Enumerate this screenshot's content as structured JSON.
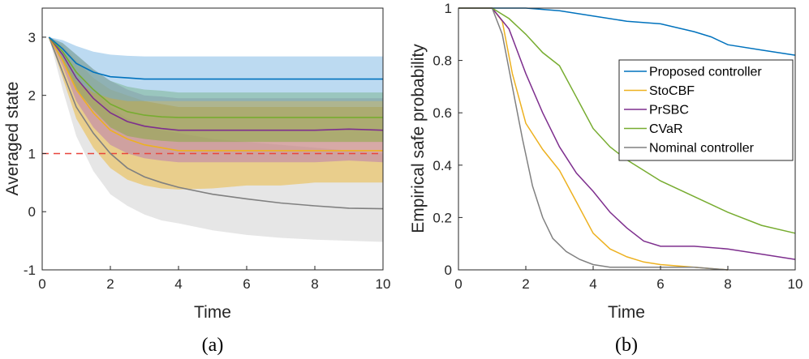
{
  "chart_data": [
    {
      "type": "line",
      "panel": "left",
      "caption": "(a)",
      "xlabel": "Time",
      "ylabel": "Averaged state",
      "xlim": [
        0,
        10
      ],
      "ylim": [
        -1,
        3.5
      ],
      "xticks": [
        "0",
        "2",
        "4",
        "6",
        "8",
        "10"
      ],
      "yticks": [
        "-1",
        "0",
        "1",
        "2",
        "3"
      ],
      "reference_line": {
        "y": 1,
        "color": "#e8453c",
        "style": "dashed"
      },
      "series": [
        {
          "name": "Nominal controller",
          "color": "#808080",
          "band_color": "#c8c8c8",
          "x": [
            0.2,
            0.6,
            1.0,
            1.5,
            2.0,
            2.5,
            3.0,
            3.5,
            4.0,
            5.0,
            6.0,
            7.0,
            8.0,
            9.0,
            10.0
          ],
          "mean": [
            3.0,
            2.4,
            1.8,
            1.35,
            1.0,
            0.75,
            0.6,
            0.5,
            0.42,
            0.3,
            0.22,
            0.15,
            0.1,
            0.06,
            0.05
          ],
          "upper": [
            3.0,
            2.75,
            2.4,
            2.1,
            1.8,
            1.6,
            1.5,
            1.4,
            1.35,
            1.25,
            1.2,
            1.15,
            1.1,
            1.05,
            1.0
          ],
          "lower": [
            3.0,
            2.1,
            1.3,
            0.7,
            0.3,
            0.1,
            -0.05,
            -0.15,
            -0.2,
            -0.32,
            -0.4,
            -0.45,
            -0.48,
            -0.5,
            -0.52
          ]
        },
        {
          "name": "StoCBF",
          "color": "#edb120",
          "band_color": "#edb120",
          "x": [
            0.2,
            0.6,
            1.0,
            1.5,
            2.0,
            2.5,
            3.0,
            3.5,
            4.0,
            5.0,
            6.0,
            7.0,
            8.0,
            9.0,
            10.0
          ],
          "mean": [
            3.0,
            2.6,
            2.1,
            1.7,
            1.4,
            1.25,
            1.15,
            1.1,
            1.05,
            1.05,
            1.05,
            1.05,
            1.05,
            1.05,
            1.05
          ],
          "upper": [
            3.0,
            2.85,
            2.6,
            2.3,
            2.1,
            2.0,
            1.9,
            1.85,
            1.8,
            1.8,
            1.8,
            1.8,
            1.8,
            1.8,
            1.8
          ],
          "lower": [
            3.0,
            2.3,
            1.6,
            1.1,
            0.75,
            0.55,
            0.45,
            0.4,
            0.38,
            0.4,
            0.45,
            0.45,
            0.5,
            0.5,
            0.5
          ]
        },
        {
          "name": "PrSBC",
          "color": "#7e2f8e",
          "band_color": "#b06ab8",
          "x": [
            0.2,
            0.6,
            1.0,
            1.5,
            2.0,
            2.5,
            3.0,
            3.5,
            4.0,
            5.0,
            6.0,
            7.0,
            8.0,
            9.0,
            10.0
          ],
          "mean": [
            3.0,
            2.7,
            2.3,
            1.95,
            1.7,
            1.55,
            1.47,
            1.43,
            1.4,
            1.4,
            1.4,
            1.4,
            1.4,
            1.42,
            1.4
          ],
          "upper": [
            3.0,
            2.9,
            2.7,
            2.45,
            2.25,
            2.1,
            2.0,
            1.98,
            1.95,
            1.95,
            1.95,
            1.95,
            1.95,
            1.95,
            1.95
          ],
          "lower": [
            3.0,
            2.5,
            1.9,
            1.45,
            1.15,
            1.0,
            0.92,
            0.88,
            0.85,
            0.85,
            0.85,
            0.85,
            0.85,
            0.88,
            0.85
          ]
        },
        {
          "name": "CVaR",
          "color": "#77ac30",
          "band_color": "#77ac30",
          "x": [
            0.2,
            0.6,
            1.0,
            1.5,
            2.0,
            2.5,
            3.0,
            3.5,
            4.0,
            5.0,
            6.0,
            7.0,
            8.0,
            9.0,
            10.0
          ],
          "mean": [
            3.0,
            2.75,
            2.4,
            2.1,
            1.85,
            1.72,
            1.66,
            1.63,
            1.62,
            1.62,
            1.62,
            1.62,
            1.62,
            1.62,
            1.62
          ],
          "upper": [
            3.0,
            2.9,
            2.7,
            2.45,
            2.25,
            2.15,
            2.1,
            2.08,
            2.05,
            2.05,
            2.05,
            2.05,
            2.05,
            2.05,
            2.05
          ],
          "lower": [
            3.0,
            2.6,
            2.1,
            1.75,
            1.45,
            1.3,
            1.25,
            1.22,
            1.2,
            1.2,
            1.2,
            1.2,
            1.2,
            1.2,
            1.2
          ]
        },
        {
          "name": "Proposed controller",
          "color": "#0072bd",
          "band_color": "#6aaddf",
          "x": [
            0.2,
            0.6,
            1.0,
            1.5,
            2.0,
            2.5,
            3.0,
            3.5,
            4.0,
            5.0,
            6.0,
            7.0,
            8.0,
            9.0,
            10.0
          ],
          "mean": [
            3.0,
            2.8,
            2.55,
            2.4,
            2.32,
            2.3,
            2.28,
            2.28,
            2.28,
            2.28,
            2.28,
            2.28,
            2.28,
            2.28,
            2.28
          ],
          "upper": [
            3.0,
            2.95,
            2.85,
            2.75,
            2.7,
            2.68,
            2.67,
            2.67,
            2.67,
            2.67,
            2.67,
            2.67,
            2.67,
            2.67,
            2.67
          ],
          "lower": [
            3.0,
            2.65,
            2.25,
            2.05,
            1.95,
            1.9,
            1.9,
            1.9,
            1.9,
            1.9,
            1.9,
            1.9,
            1.9,
            1.9,
            1.9
          ]
        }
      ]
    },
    {
      "type": "line",
      "panel": "right",
      "caption": "(b)",
      "xlabel": "Time",
      "ylabel": "Empirical safe probability",
      "xlim": [
        0,
        10
      ],
      "ylim": [
        0,
        1
      ],
      "xticks": [
        "0",
        "2",
        "4",
        "6",
        "8",
        "10"
      ],
      "yticks": [
        "0",
        "0.2",
        "0.4",
        "0.6",
        "0.8",
        "1"
      ],
      "legend_position": "top-right",
      "series": [
        {
          "name": "Proposed controller",
          "color": "#0072bd",
          "x": [
            0,
            2.0,
            3.0,
            4.0,
            5.0,
            6.0,
            7.0,
            7.5,
            8.0,
            9.0,
            10.0
          ],
          "y": [
            1.0,
            1.0,
            0.99,
            0.97,
            0.95,
            0.94,
            0.91,
            0.89,
            0.86,
            0.84,
            0.82
          ]
        },
        {
          "name": "StoCBF",
          "color": "#edb120",
          "x": [
            0,
            1.0,
            1.3,
            1.6,
            2.0,
            2.5,
            3.0,
            3.5,
            4.0,
            4.5,
            5.0,
            5.5,
            6.0,
            7.0,
            8.0
          ],
          "y": [
            1.0,
            1.0,
            0.95,
            0.75,
            0.56,
            0.46,
            0.38,
            0.26,
            0.14,
            0.08,
            0.05,
            0.03,
            0.02,
            0.01,
            0.0
          ]
        },
        {
          "name": "PrSBC",
          "color": "#7e2f8e",
          "x": [
            0,
            1.0,
            1.5,
            2.0,
            2.5,
            3.0,
            3.5,
            4.0,
            4.5,
            5.0,
            5.5,
            6.0,
            7.0,
            8.0,
            9.0,
            10.0
          ],
          "y": [
            1.0,
            1.0,
            0.92,
            0.75,
            0.6,
            0.47,
            0.37,
            0.3,
            0.22,
            0.16,
            0.11,
            0.09,
            0.09,
            0.08,
            0.06,
            0.04
          ]
        },
        {
          "name": "CVaR",
          "color": "#77ac30",
          "x": [
            0,
            1.0,
            1.5,
            2.0,
            2.5,
            3.0,
            3.5,
            4.0,
            4.5,
            5.0,
            5.5,
            6.0,
            7.0,
            8.0,
            9.0,
            10.0
          ],
          "y": [
            1.0,
            1.0,
            0.96,
            0.9,
            0.83,
            0.78,
            0.66,
            0.54,
            0.47,
            0.42,
            0.38,
            0.34,
            0.28,
            0.22,
            0.17,
            0.14
          ]
        },
        {
          "name": "Nominal controller",
          "color": "#808080",
          "x": [
            0,
            1.0,
            1.3,
            1.6,
            1.9,
            2.2,
            2.5,
            2.8,
            3.2,
            3.6,
            4.0,
            4.5,
            5.0,
            7.0,
            8.0
          ],
          "y": [
            1.0,
            1.0,
            0.9,
            0.7,
            0.5,
            0.32,
            0.2,
            0.12,
            0.07,
            0.04,
            0.02,
            0.01,
            0.01,
            0.01,
            0.0
          ]
        }
      ]
    }
  ]
}
